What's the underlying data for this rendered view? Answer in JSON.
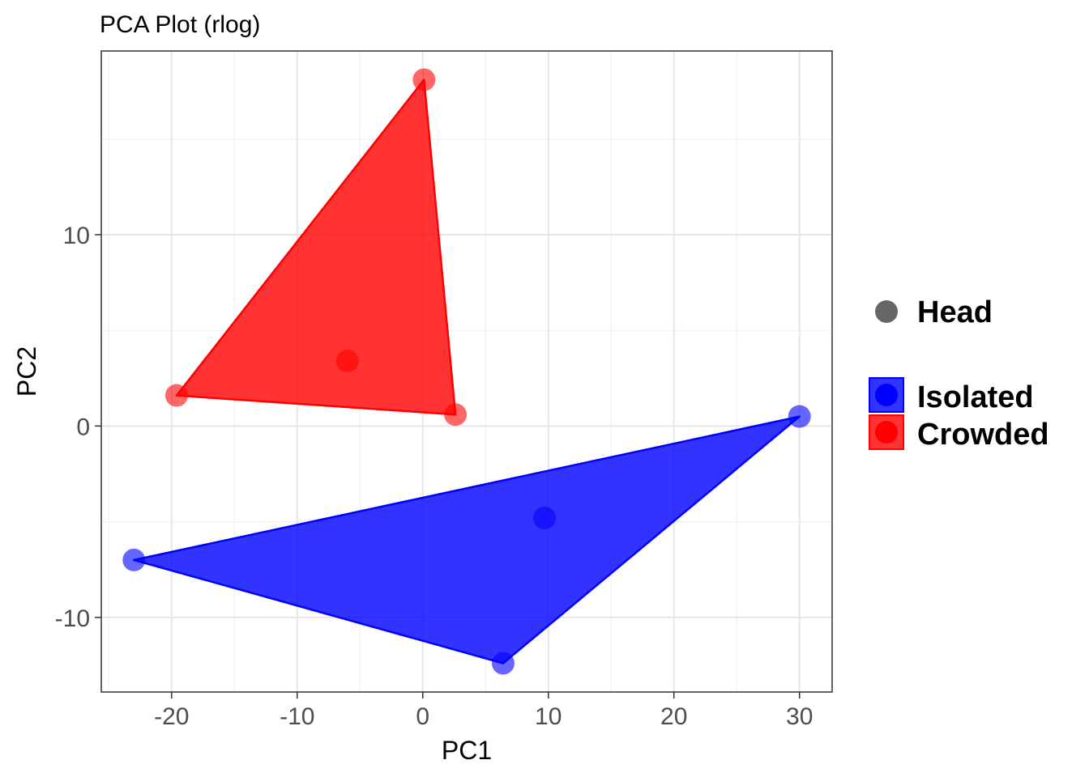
{
  "chart_data": {
    "type": "scatter",
    "title": "PCA Plot (rlog)",
    "xlabel": "PC1",
    "ylabel": "PC2",
    "xlim": [
      -25.6,
      32.6
    ],
    "ylim": [
      -13.9,
      19.6
    ],
    "x_ticks": [
      -20,
      -10,
      0,
      10,
      20,
      30
    ],
    "y_ticks": [
      -10,
      0,
      10
    ],
    "x_tick_labels": [
      "-20",
      "-10",
      "0",
      "10",
      "20",
      "30"
    ],
    "y_tick_labels": [
      "-10",
      "0",
      "10"
    ],
    "grid": true,
    "legend_position": "right",
    "shape_legend": [
      {
        "label": "Head",
        "color": "#666666"
      }
    ],
    "series": [
      {
        "name": "Isolated",
        "color": "#0000ff",
        "points": [
          {
            "x": -23.0,
            "y": -7.0
          },
          {
            "x": 6.4,
            "y": -12.4
          },
          {
            "x": 9.7,
            "y": -4.8
          },
          {
            "x": 30.0,
            "y": 0.5
          }
        ],
        "hull": [
          [
            -23.0,
            -7.0
          ],
          [
            6.4,
            -12.4
          ],
          [
            30.0,
            0.5
          ]
        ]
      },
      {
        "name": "Crowded",
        "color": "#ff0000",
        "points": [
          {
            "x": -19.6,
            "y": 1.6
          },
          {
            "x": 0.1,
            "y": 18.1
          },
          {
            "x": 2.6,
            "y": 0.6
          },
          {
            "x": -6.0,
            "y": 3.4
          }
        ],
        "hull": [
          [
            -19.6,
            1.6
          ],
          [
            0.1,
            18.1
          ],
          [
            2.6,
            0.6
          ]
        ]
      }
    ]
  }
}
